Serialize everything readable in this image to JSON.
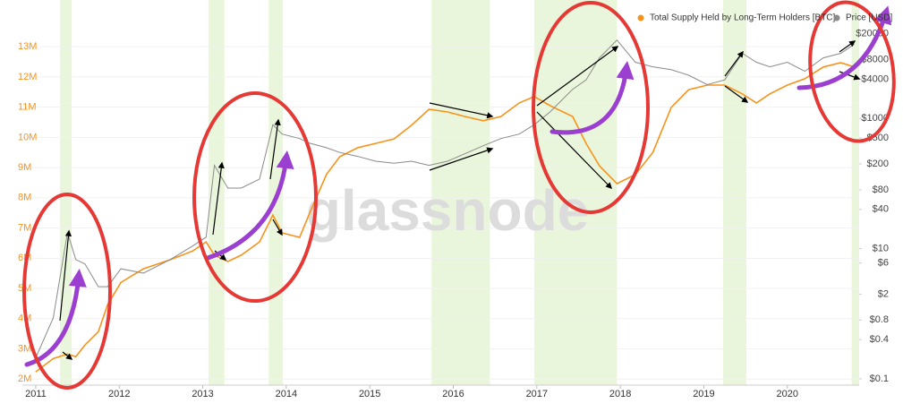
{
  "chart_data": {
    "type": "line",
    "legend": "top-right",
    "watermark": "glassnode",
    "grid": true,
    "x": [
      2011.0,
      2011.21,
      2011.38,
      2011.48,
      2011.59,
      2011.75,
      2011.86,
      2012.02,
      2012.29,
      2012.61,
      2012.88,
      2013.04,
      2013.14,
      2013.3,
      2013.46,
      2013.68,
      2013.84,
      2013.95,
      2014.16,
      2014.27,
      2014.48,
      2014.64,
      2014.86,
      2015.07,
      2015.29,
      2015.5,
      2015.71,
      2015.93,
      2016.14,
      2016.36,
      2016.57,
      2016.79,
      2016.97,
      2017.16,
      2017.43,
      2017.59,
      2017.75,
      2017.96,
      2018.18,
      2018.39,
      2018.61,
      2018.82,
      2019.04,
      2019.25,
      2019.46,
      2019.63,
      2019.79,
      2020.0,
      2020.21,
      2020.43,
      2020.64,
      2020.8
    ],
    "xlim": [
      2010.84,
      2020.86
    ],
    "xticks": [
      2011,
      2012,
      2013,
      2014,
      2015,
      2016,
      2017,
      2018,
      2019,
      2020
    ],
    "ylim": [
      1800000,
      14250000
    ],
    "yticks": [
      {
        "value": 2000000,
        "label": "2M"
      },
      {
        "value": 3000000,
        "label": "3M"
      },
      {
        "value": 4000000,
        "label": "4M"
      },
      {
        "value": 5000000,
        "label": "5M"
      },
      {
        "value": 6000000,
        "label": "6M"
      },
      {
        "value": 7000000,
        "label": "7M"
      },
      {
        "value": 8000000,
        "label": "8M"
      },
      {
        "value": 9000000,
        "label": "9M"
      },
      {
        "value": 10000000,
        "label": "10M"
      },
      {
        "value": 11000000,
        "label": "11M"
      },
      {
        "value": 12000000,
        "label": "12M"
      },
      {
        "value": 13000000,
        "label": "13M"
      }
    ],
    "y2scale": "log",
    "y2lim": [
      0.08,
      48000
    ],
    "y2ticks": [
      {
        "value": 0.1,
        "label": "$0.1"
      },
      {
        "value": 0.4,
        "label": "$0.4"
      },
      {
        "value": 0.8,
        "label": "$0.8"
      },
      {
        "value": 2,
        "label": "$2"
      },
      {
        "value": 6,
        "label": "$6"
      },
      {
        "value": 10,
        "label": "$10"
      },
      {
        "value": 40,
        "label": "$40"
      },
      {
        "value": 80,
        "label": "$80"
      },
      {
        "value": 200,
        "label": "$200"
      },
      {
        "value": 500,
        "label": "$500"
      },
      {
        "value": 1000,
        "label": "$1000"
      },
      {
        "value": 4000,
        "label": "$4000"
      },
      {
        "value": 8000,
        "label": "$8000"
      },
      {
        "value": 20000,
        "label": "$20000"
      }
    ],
    "shaded_ranges": [
      [
        2011.29,
        2011.43
      ],
      [
        2013.07,
        2013.26
      ],
      [
        2013.79,
        2013.96
      ],
      [
        2015.74,
        2016.44
      ],
      [
        2016.97,
        2017.96
      ],
      [
        2019.23,
        2019.51
      ],
      [
        2020.77,
        2020.86
      ]
    ],
    "shade_color": "#eaf6dc",
    "series": [
      {
        "name": "Total Supply Held by Long-Term Holders [BTC]",
        "color": "#f7931a",
        "values": [
          2240000,
          2680000,
          2830000,
          2740000,
          3130000,
          3570000,
          4460000,
          5200000,
          5650000,
          5950000,
          6240000,
          6540000,
          6100000,
          5890000,
          6100000,
          6540000,
          7430000,
          6840000,
          6690000,
          7430000,
          8770000,
          9360000,
          9660000,
          9800000,
          9950000,
          10400000,
          10930000,
          10840000,
          10690000,
          10550000,
          10690000,
          11140000,
          11350000,
          11050000,
          10690000,
          9800000,
          9060000,
          8470000,
          8770000,
          9500000,
          10990000,
          11580000,
          11730000,
          11730000,
          11440000,
          11140000,
          11440000,
          11730000,
          11940000,
          12330000,
          12470000,
          12330000
        ]
      },
      {
        "name": "Price [USD]",
        "color": "#8a8a8a",
        "axis": "y2",
        "values": [
          0.21,
          0.86,
          17.6,
          6.8,
          5.8,
          2.6,
          2.6,
          4.9,
          4.2,
          6.8,
          11,
          15,
          190,
          85,
          85,
          117,
          800,
          575,
          490,
          420,
          355,
          300,
          260,
          220,
          205,
          220,
          190,
          220,
          287,
          380,
          490,
          575,
          800,
          1260,
          2800,
          3900,
          8500,
          16000,
          7300,
          6200,
          5600,
          4600,
          3300,
          3900,
          10000,
          7300,
          6200,
          7300,
          5300,
          8500,
          10000,
          13800
        ]
      }
    ]
  }
}
